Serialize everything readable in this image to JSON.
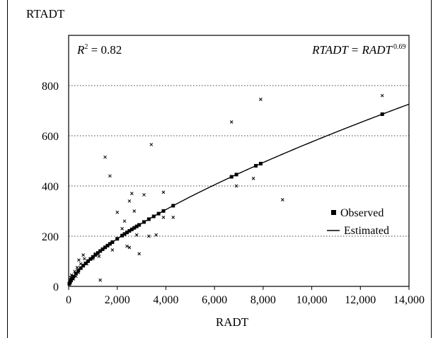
{
  "chart_data": {
    "type": "scatter",
    "ylabel": "RTADT",
    "xlabel": "RADT",
    "xlim": [
      0,
      14000
    ],
    "ylim": [
      0,
      1000
    ],
    "xticks": [
      0,
      2000,
      4000,
      6000,
      8000,
      10000,
      12000,
      14000
    ],
    "xtick_labels": [
      "0",
      "2,000",
      "4,000",
      "6,000",
      "8,000",
      "10,000",
      "12,000",
      "14,000"
    ],
    "yticks": [
      0,
      200,
      400,
      600,
      800
    ],
    "ytick_labels": [
      "0",
      "200",
      "400",
      "600",
      "800"
    ],
    "grid": "horizontal dotted",
    "legend_position": "right",
    "annotations": {
      "r2_symbol": "R",
      "r2_exp": "2",
      "r2_rest": " = 0.82",
      "eq_left": "RTADT = RADT",
      "eq_exp": "0.69"
    },
    "series": [
      {
        "name": "Observed",
        "marker": "x",
        "points": [
          [
            20,
            12
          ],
          [
            40,
            22
          ],
          [
            60,
            15
          ],
          [
            80,
            35
          ],
          [
            100,
            28
          ],
          [
            120,
            45
          ],
          [
            150,
            40
          ],
          [
            200,
            30
          ],
          [
            250,
            60
          ],
          [
            300,
            40
          ],
          [
            350,
            75
          ],
          [
            400,
            55
          ],
          [
            420,
            105
          ],
          [
            500,
            90
          ],
          [
            600,
            125
          ],
          [
            650,
            110
          ],
          [
            750,
            90
          ],
          [
            1000,
            110
          ],
          [
            1100,
            130
          ],
          [
            1250,
            120
          ],
          [
            1300,
            25
          ],
          [
            1500,
            515
          ],
          [
            1700,
            440
          ],
          [
            1800,
            145
          ],
          [
            2000,
            295
          ],
          [
            2200,
            230
          ],
          [
            2300,
            260
          ],
          [
            2400,
            160
          ],
          [
            2500,
            155
          ],
          [
            2500,
            340
          ],
          [
            2600,
            370
          ],
          [
            2700,
            300
          ],
          [
            2800,
            205
          ],
          [
            2900,
            130
          ],
          [
            3100,
            365
          ],
          [
            3300,
            200
          ],
          [
            3400,
            565
          ],
          [
            3600,
            205
          ],
          [
            3900,
            375
          ],
          [
            3900,
            275
          ],
          [
            4300,
            275
          ],
          [
            6700,
            655
          ],
          [
            6900,
            400
          ],
          [
            7600,
            430
          ],
          [
            7900,
            745
          ],
          [
            8800,
            345
          ],
          [
            12900,
            760
          ]
        ]
      },
      {
        "name": "Estimated",
        "fit_coefficient": 1.0,
        "fit_exponent": 0.69,
        "markers_at": [
          30,
          60,
          100,
          150,
          200,
          300,
          400,
          500,
          600,
          700,
          800,
          900,
          1000,
          1100,
          1200,
          1300,
          1400,
          1500,
          1600,
          1700,
          1800,
          2000,
          2200,
          2300,
          2400,
          2500,
          2600,
          2700,
          2800,
          2900,
          3100,
          3300,
          3500,
          3700,
          3900,
          4300,
          6700,
          6900,
          7700,
          7900,
          12900
        ]
      }
    ]
  }
}
